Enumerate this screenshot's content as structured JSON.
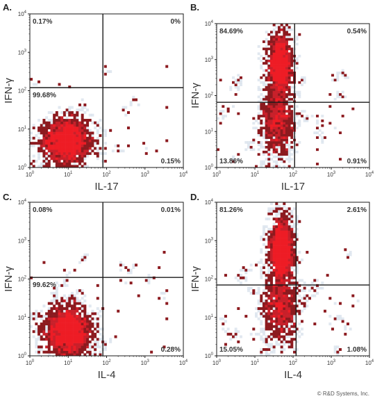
{
  "colors": {
    "frame": "#1a1a1a",
    "density_core": "#ee1c25",
    "density_mid": "#c8202a",
    "density_sparse": "#8c1a1f",
    "density_halo": "#c9d6e4"
  },
  "footer": {
    "credit": "© R&D Systems, Inc."
  },
  "chart_data": [
    {
      "type": "scatter",
      "panel_label": "A.",
      "xlabel": "IL-17",
      "ylabel": "IFN-γ",
      "x_scale": "log",
      "y_scale": "log",
      "xlim": [
        1,
        10000
      ],
      "ylim": [
        1,
        10000
      ],
      "tick_labels": [
        "10^0",
        "10^1",
        "10^2",
        "10^3",
        "10^4"
      ],
      "gate": {
        "x": 80,
        "y": 120
      },
      "quadrants": {
        "upper_left": "0.17%",
        "upper_right": "0%",
        "lower_left": "99.68%",
        "lower_right": "0.15%"
      },
      "populations": [
        {
          "center": [
            9,
            5
          ],
          "spread": [
            0.28,
            0.28
          ],
          "count": 1900
        }
      ],
      "stray_events": 40
    },
    {
      "type": "scatter",
      "panel_label": "B.",
      "xlabel": "IL-17",
      "ylabel": "IFN-γ",
      "x_scale": "log",
      "y_scale": "log",
      "xlim": [
        1,
        10000
      ],
      "ylim": [
        1,
        10000
      ],
      "tick_labels": [
        "10^0",
        "10^1",
        "10^2",
        "10^3",
        "10^4"
      ],
      "gate": {
        "x": 110,
        "y": 65
      },
      "quadrants": {
        "upper_left": "84.69%",
        "upper_right": "0.54%",
        "lower_left": "13.86%",
        "lower_right": "0.91%"
      },
      "populations": [
        {
          "center": [
            45,
            700
          ],
          "spread": [
            0.14,
            0.38
          ],
          "count": 1500
        },
        {
          "center": [
            40,
            18
          ],
          "spread": [
            0.2,
            0.45
          ],
          "count": 700
        }
      ],
      "stray_events": 60
    },
    {
      "type": "scatter",
      "panel_label": "C.",
      "xlabel": "IL-4",
      "ylabel": "IFN-γ",
      "x_scale": "log",
      "y_scale": "log",
      "xlim": [
        1,
        10000
      ],
      "ylim": [
        1,
        10000
      ],
      "tick_labels": [
        "10^0",
        "10^1",
        "10^2",
        "10^3",
        "10^4"
      ],
      "gate": {
        "x": 80,
        "y": 110
      },
      "quadrants": {
        "upper_left": "0.08%",
        "upper_right": "0.01%",
        "lower_left": "99.62%",
        "lower_right": "0.28%"
      },
      "populations": [
        {
          "center": [
            10,
            4.5
          ],
          "spread": [
            0.28,
            0.3
          ],
          "count": 1900
        }
      ],
      "stray_events": 40
    },
    {
      "type": "scatter",
      "panel_label": "D.",
      "xlabel": "IL-4",
      "ylabel": "IFN-γ",
      "x_scale": "log",
      "y_scale": "log",
      "xlim": [
        1,
        10000
      ],
      "ylim": [
        1,
        10000
      ],
      "tick_labels": [
        "10^0",
        "10^1",
        "10^2",
        "10^3",
        "10^4"
      ],
      "gate": {
        "x": 120,
        "y": 70
      },
      "quadrants": {
        "upper_left": "81.26%",
        "upper_right": "2.61%",
        "lower_left": "15.05%",
        "lower_right": "1.08%"
      },
      "populations": [
        {
          "center": [
            50,
            600
          ],
          "spread": [
            0.14,
            0.38
          ],
          "count": 1500
        },
        {
          "center": [
            45,
            20
          ],
          "spread": [
            0.2,
            0.42
          ],
          "count": 700
        }
      ],
      "stray_events": 70
    }
  ]
}
